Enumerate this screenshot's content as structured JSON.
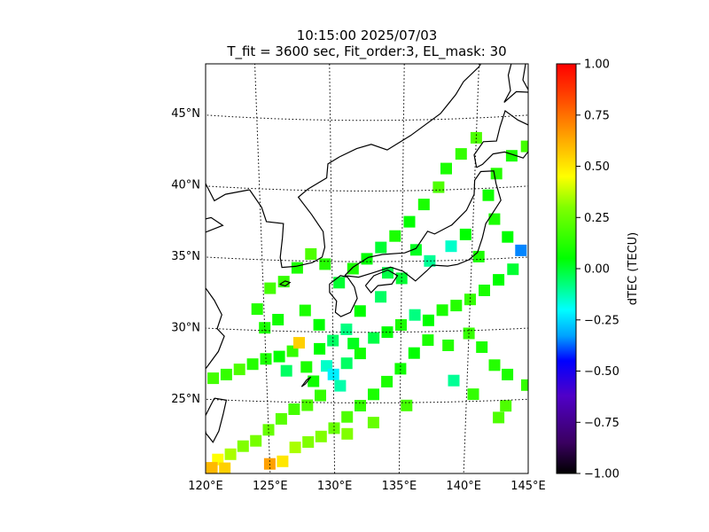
{
  "figure": {
    "title_line1": "10:15:00 2025/07/03",
    "title_line2": "T_fit = 3600 sec, Fit_order:3, EL_mask: 30"
  },
  "map": {
    "lon_range": [
      120,
      145
    ],
    "lat_range": [
      20,
      49
    ],
    "lat_labels": [
      "25°N",
      "30°N",
      "35°N",
      "40°N",
      "45°N"
    ],
    "lon_labels": [
      "120°E",
      "125°E",
      "130°E",
      "135°E",
      "140°E",
      "145°E"
    ],
    "gridlines": "dotted"
  },
  "colorbar": {
    "label": "dTEC (TECU)",
    "range": [
      -1.0,
      1.0
    ],
    "ticks": [
      "1.00",
      "0.75",
      "0.50",
      "0.25",
      "0.00",
      "−0.25",
      "−0.50",
      "−0.75",
      "−1.00"
    ],
    "colors": [
      "#000000",
      "#3a0060",
      "#5000c8",
      "#0000ff",
      "#00a0ff",
      "#00ffff",
      "#00ff80",
      "#00ff00",
      "#80ff00",
      "#ffff00",
      "#ffa000",
      "#ff4000",
      "#ff0000"
    ]
  },
  "chart_data": {
    "type": "heatmap",
    "value_unit": "dTEC (TECU)",
    "clim": [
      -1.0,
      1.0
    ],
    "cells": [
      {
        "lon": 121,
        "lat": 26.5,
        "v": 0.18
      },
      {
        "lon": 122,
        "lat": 26.8,
        "v": 0.15
      },
      {
        "lon": 123,
        "lat": 27.2,
        "v": 0.2
      },
      {
        "lon": 124,
        "lat": 27.6,
        "v": 0.12
      },
      {
        "lon": 125,
        "lat": 28.0,
        "v": 0.1
      },
      {
        "lon": 126,
        "lat": 28.2,
        "v": 0.05
      },
      {
        "lon": 126.5,
        "lat": 27.2,
        "v": -0.05
      },
      {
        "lon": 127,
        "lat": 28.6,
        "v": 0.15
      },
      {
        "lon": 127.5,
        "lat": 29.2,
        "v": 0.55
      },
      {
        "lon": 128,
        "lat": 27.5,
        "v": 0.1
      },
      {
        "lon": 128.5,
        "lat": 26.5,
        "v": 0.08
      },
      {
        "lon": 129,
        "lat": 28.8,
        "v": 0.05
      },
      {
        "lon": 129.5,
        "lat": 27.6,
        "v": -0.15
      },
      {
        "lon": 130,
        "lat": 27.0,
        "v": -0.22
      },
      {
        "lon": 130.5,
        "lat": 26.2,
        "v": -0.12
      },
      {
        "lon": 131,
        "lat": 27.8,
        "v": -0.05
      },
      {
        "lon": 131.5,
        "lat": 29.2,
        "v": 0.02
      },
      {
        "lon": 132,
        "lat": 28.5,
        "v": 0.08
      },
      {
        "lon": 133,
        "lat": 29.6,
        "v": -0.02
      },
      {
        "lon": 134,
        "lat": 30.0,
        "v": 0.05
      },
      {
        "lon": 135,
        "lat": 30.5,
        "v": 0.1
      },
      {
        "lon": 136,
        "lat": 31.2,
        "v": -0.08
      },
      {
        "lon": 137,
        "lat": 30.8,
        "v": 0.05
      },
      {
        "lon": 138,
        "lat": 31.5,
        "v": 0.1
      },
      {
        "lon": 139,
        "lat": 31.8,
        "v": 0.12
      },
      {
        "lon": 140,
        "lat": 32.2,
        "v": 0.15
      },
      {
        "lon": 141,
        "lat": 32.8,
        "v": 0.1
      },
      {
        "lon": 142,
        "lat": 33.5,
        "v": 0.05
      },
      {
        "lon": 143,
        "lat": 34.2,
        "v": 0.0
      },
      {
        "lon": 143.5,
        "lat": 35.5,
        "v": -0.35
      },
      {
        "lon": 142.5,
        "lat": 36.5,
        "v": 0.05
      },
      {
        "lon": 141.5,
        "lat": 37.8,
        "v": 0.1
      },
      {
        "lon": 141,
        "lat": 39.5,
        "v": 0.08
      },
      {
        "lon": 141.5,
        "lat": 41.0,
        "v": 0.12
      },
      {
        "lon": 142.5,
        "lat": 42.2,
        "v": 0.1
      },
      {
        "lon": 143.5,
        "lat": 42.8,
        "v": 0.18
      },
      {
        "lon": 144.5,
        "lat": 43.2,
        "v": 0.15
      },
      {
        "lon": 140,
        "lat": 43.6,
        "v": 0.2
      },
      {
        "lon": 139,
        "lat": 42.5,
        "v": 0.15
      },
      {
        "lon": 138,
        "lat": 41.5,
        "v": 0.1
      },
      {
        "lon": 137.5,
        "lat": 40.2,
        "v": 0.2
      },
      {
        "lon": 136.5,
        "lat": 39.0,
        "v": 0.1
      },
      {
        "lon": 135.5,
        "lat": 37.8,
        "v": 0.05
      },
      {
        "lon": 134.5,
        "lat": 36.8,
        "v": 0.1
      },
      {
        "lon": 133.5,
        "lat": 36.0,
        "v": 0.0
      },
      {
        "lon": 132.5,
        "lat": 35.2,
        "v": 0.05
      },
      {
        "lon": 131.5,
        "lat": 34.5,
        "v": 0.1
      },
      {
        "lon": 130.5,
        "lat": 33.5,
        "v": 0.0
      },
      {
        "lon": 129.5,
        "lat": 34.8,
        "v": 0.12
      },
      {
        "lon": 128.5,
        "lat": 35.5,
        "v": 0.2
      },
      {
        "lon": 127.5,
        "lat": 34.5,
        "v": 0.1
      },
      {
        "lon": 126.5,
        "lat": 33.5,
        "v": 0.15
      },
      {
        "lon": 125.5,
        "lat": 33.0,
        "v": 0.18
      },
      {
        "lon": 124.5,
        "lat": 31.5,
        "v": 0.12
      },
      {
        "lon": 125,
        "lat": 30.2,
        "v": 0.1
      },
      {
        "lon": 126,
        "lat": 30.8,
        "v": 0.08
      },
      {
        "lon": 128,
        "lat": 31.5,
        "v": 0.1
      },
      {
        "lon": 129,
        "lat": 30.5,
        "v": 0.05
      },
      {
        "lon": 133.5,
        "lat": 32.5,
        "v": -0.05
      },
      {
        "lon": 135,
        "lat": 33.8,
        "v": 0.0
      },
      {
        "lon": 137,
        "lat": 35.0,
        "v": -0.1
      },
      {
        "lon": 138.5,
        "lat": 36.0,
        "v": -0.15
      },
      {
        "lon": 139.5,
        "lat": 36.8,
        "v": 0.05
      },
      {
        "lon": 140.5,
        "lat": 35.2,
        "v": 0.1
      },
      {
        "lon": 136,
        "lat": 35.8,
        "v": 0.02
      },
      {
        "lon": 134,
        "lat": 34.2,
        "v": -0.02
      },
      {
        "lon": 132,
        "lat": 31.5,
        "v": 0.05
      },
      {
        "lon": 131,
        "lat": 30.2,
        "v": -0.08
      },
      {
        "lon": 130,
        "lat": 29.4,
        "v": -0.05
      },
      {
        "lon": 129,
        "lat": 25.5,
        "v": 0.15
      },
      {
        "lon": 128,
        "lat": 24.8,
        "v": 0.2
      },
      {
        "lon": 127,
        "lat": 24.5,
        "v": 0.18
      },
      {
        "lon": 126,
        "lat": 23.8,
        "v": 0.22
      },
      {
        "lon": 125,
        "lat": 23.0,
        "v": 0.25
      },
      {
        "lon": 124,
        "lat": 22.2,
        "v": 0.28
      },
      {
        "lon": 123,
        "lat": 21.8,
        "v": 0.3
      },
      {
        "lon": 122,
        "lat": 21.2,
        "v": 0.35
      },
      {
        "lon": 121,
        "lat": 20.8,
        "v": 0.45
      },
      {
        "lon": 120.5,
        "lat": 20.2,
        "v": 0.6
      },
      {
        "lon": 121.5,
        "lat": 20.2,
        "v": 0.55
      },
      {
        "lon": 125,
        "lat": 20.6,
        "v": 0.65
      },
      {
        "lon": 126,
        "lat": 20.8,
        "v": 0.5
      },
      {
        "lon": 127,
        "lat": 21.8,
        "v": 0.35
      },
      {
        "lon": 128,
        "lat": 22.2,
        "v": 0.3
      },
      {
        "lon": 129,
        "lat": 22.6,
        "v": 0.3
      },
      {
        "lon": 130,
        "lat": 23.2,
        "v": 0.25
      },
      {
        "lon": 131,
        "lat": 24.0,
        "v": 0.2
      },
      {
        "lon": 132,
        "lat": 24.8,
        "v": 0.15
      },
      {
        "lon": 133,
        "lat": 25.6,
        "v": 0.1
      },
      {
        "lon": 134,
        "lat": 26.5,
        "v": 0.1
      },
      {
        "lon": 135,
        "lat": 27.4,
        "v": 0.08
      },
      {
        "lon": 136,
        "lat": 28.5,
        "v": 0.05
      },
      {
        "lon": 137,
        "lat": 29.4,
        "v": 0.1
      },
      {
        "lon": 138.5,
        "lat": 29.0,
        "v": 0.12
      },
      {
        "lon": 140,
        "lat": 29.8,
        "v": 0.15
      },
      {
        "lon": 141,
        "lat": 28.8,
        "v": 0.1
      },
      {
        "lon": 142,
        "lat": 27.5,
        "v": 0.12
      },
      {
        "lon": 143,
        "lat": 26.8,
        "v": 0.1
      },
      {
        "lon": 144.5,
        "lat": 26.0,
        "v": 0.15
      },
      {
        "lon": 143,
        "lat": 24.6,
        "v": 0.2
      },
      {
        "lon": 140.5,
        "lat": 25.5,
        "v": 0.15
      },
      {
        "lon": 139,
        "lat": 26.5,
        "v": -0.1
      },
      {
        "lon": 135.5,
        "lat": 24.8,
        "v": 0.18
      },
      {
        "lon": 133,
        "lat": 23.6,
        "v": 0.25
      },
      {
        "lon": 142.5,
        "lat": 23.8,
        "v": 0.2
      },
      {
        "lon": 131,
        "lat": 22.8,
        "v": 0.3
      }
    ]
  }
}
